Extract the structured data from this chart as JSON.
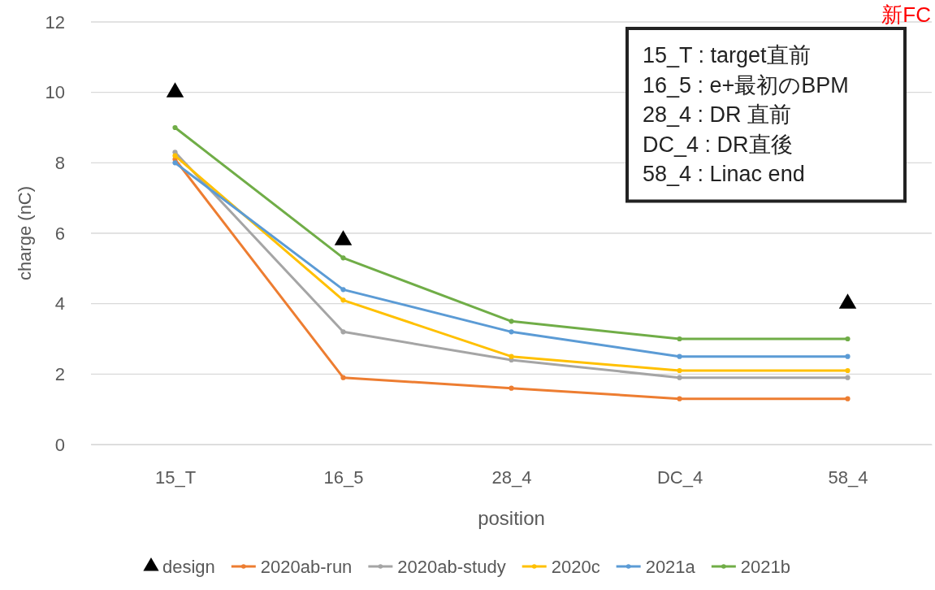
{
  "chart_data": {
    "type": "line",
    "xlabel": "position",
    "ylabel": "charge (nC)",
    "categories": [
      "15_T",
      "16_5",
      "28_4",
      "DC_4",
      "58_4"
    ],
    "ylim": [
      0,
      12
    ],
    "yticks": [
      0,
      2,
      4,
      6,
      8,
      10,
      12
    ],
    "grid": "y",
    "legend": "bottom",
    "marker": "circle",
    "line_style": "solid",
    "annotations": [
      "新FC",
      "15_T : target直前",
      "16_5 : e+最初のBPM",
      "28_4 : DR 直前",
      "DC_4 : DR直後",
      "58_4 : Linac end"
    ],
    "series": [
      {
        "name": "design",
        "type": "scatter",
        "marker": "triangle",
        "color": "#000000",
        "values": [
          10,
          5.8,
          null,
          null,
          4
        ]
      },
      {
        "name": "2020ab-run",
        "color": "#ed7d31",
        "values": [
          8.1,
          1.9,
          1.6,
          1.3,
          1.3
        ]
      },
      {
        "name": "2020ab-study",
        "color": "#a5a5a5",
        "values": [
          8.3,
          3.2,
          2.4,
          1.9,
          1.9
        ]
      },
      {
        "name": "2020c",
        "color": "#ffc000",
        "values": [
          8.2,
          4.1,
          2.5,
          2.1,
          2.1
        ]
      },
      {
        "name": "2021a",
        "color": "#5b9bd5",
        "values": [
          8.0,
          4.4,
          3.2,
          2.5,
          2.5
        ]
      },
      {
        "name": "2021b",
        "color": "#70ad47",
        "values": [
          9.0,
          5.3,
          3.5,
          3.0,
          3.0
        ]
      }
    ]
  }
}
